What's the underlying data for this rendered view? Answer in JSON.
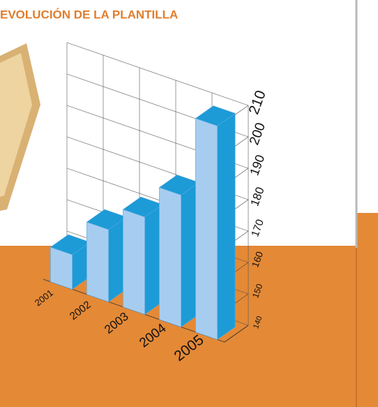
{
  "chart_data": {
    "type": "bar3d",
    "title": "EVOLUCIÓN DE LA PLANTILLA",
    "categories": [
      "2001",
      "2002",
      "2003",
      "2004",
      "2005"
    ],
    "values": [
      151,
      163,
      171,
      182,
      208
    ],
    "color": "#a6cdf0",
    "side_color": "#1c9bd7",
    "ylim": [
      140,
      210
    ],
    "yticks": [
      140,
      150,
      160,
      170,
      180,
      190,
      200,
      210
    ],
    "grid": true
  }
}
